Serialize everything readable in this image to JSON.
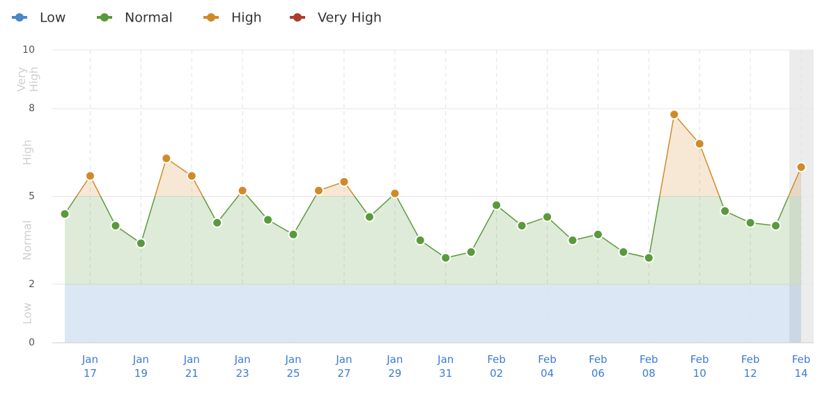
{
  "chart_data": {
    "type": "line",
    "zones": [
      {
        "name": "Low",
        "color": "#4a88c6",
        "range": [
          0,
          2
        ]
      },
      {
        "name": "Normal",
        "color": "#5a9a3c",
        "range": [
          2,
          5
        ]
      },
      {
        "name": "High",
        "color": "#d08a2a",
        "range": [
          5,
          8
        ]
      },
      {
        "name": "Very High",
        "color": "#b03a2e",
        "range": [
          8,
          10
        ]
      }
    ],
    "categories": [
      null,
      "Jan 17",
      null,
      "Jan 19",
      null,
      "Jan 21",
      null,
      "Jan 23",
      null,
      "Jan 25",
      null,
      "Jan 27",
      null,
      "Jan 29",
      null,
      "Jan 31",
      null,
      "Feb 02",
      null,
      "Feb 04",
      null,
      "Feb 06",
      null,
      "Feb 08",
      null,
      "Feb 10",
      null,
      "Feb 12",
      null,
      "Feb 14"
    ],
    "values": [
      4.4,
      5.7,
      4.0,
      3.4,
      6.3,
      5.7,
      4.1,
      5.2,
      4.2,
      3.7,
      5.2,
      5.5,
      4.3,
      5.1,
      3.5,
      2.9,
      3.1,
      4.7,
      4.0,
      4.3,
      3.5,
      3.7,
      3.1,
      2.9,
      7.8,
      6.8,
      4.5,
      4.1,
      4.0,
      6.0
    ],
    "ylim": [
      0,
      10
    ],
    "yticks": [
      0,
      2,
      5,
      8,
      10
    ],
    "grid": true
  }
}
